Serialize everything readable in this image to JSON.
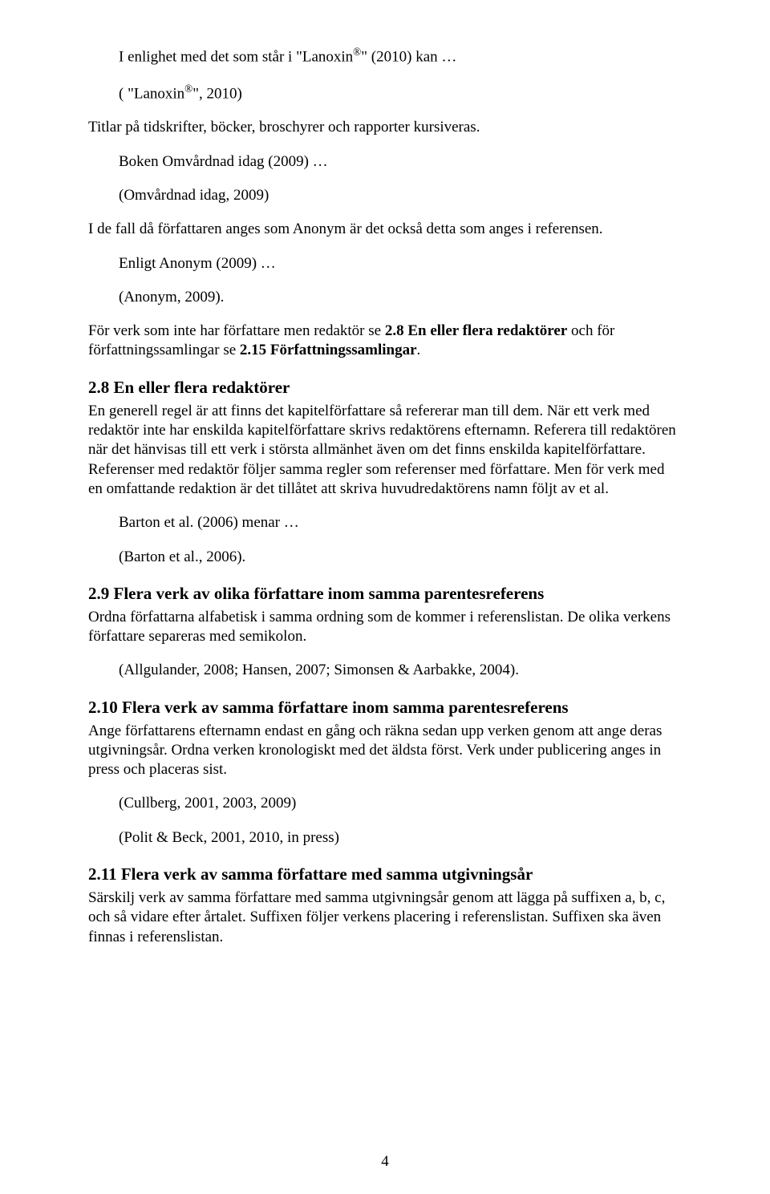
{
  "doc": {
    "line1_pre": "I enlighet med det som står i \"Lanoxin",
    "line1_sup": "®",
    "line1_post": "\" (2010) kan …",
    "line2_pre": "( \"Lanoxin",
    "line2_sup": "®",
    "line2_post": "\", 2010)",
    "p3": "Titlar på tidskrifter, böcker, broschyrer och rapporter kursiveras.",
    "p4": "Boken Omvårdnad idag (2009) …",
    "p5": "(Omvårdnad idag, 2009)",
    "p6": "I de fall då författaren anges som Anonym är det också detta som anges i referensen.",
    "p7": "Enligt Anonym (2009) …",
    "p8": "(Anonym, 2009).",
    "p9_a": "För verk som inte har författare men redaktör se ",
    "p9_b": "2.8 En eller flera redaktörer",
    "p9_c": " och för författningssamlingar se ",
    "p9_d": "2.15 Författningssamlingar",
    "p9_e": ".",
    "h28": "2.8 En eller flera redaktörer",
    "p28": "En generell regel är att finns det kapitelförfattare så refererar man till dem. När ett verk med redaktör inte har enskilda kapitelförfattare skrivs redaktörens efternamn. Referera till redaktören när det hänvisas till ett verk i största allmänhet även om det finns enskilda kapitelförfattare. Referenser med redaktör följer samma regler som referenser med författare. Men för verk med en omfattande redaktion är det tillåtet att skriva huvudredaktörens namn följt av et al.",
    "p28a": "Barton et al. (2006) menar …",
    "p28b": "(Barton et al., 2006).",
    "h29": "2.9 Flera verk av olika författare inom samma parentesreferens",
    "p29": "Ordna författarna alfabetisk i samma ordning som de kommer i referenslistan. De olika verkens författare separeras med semikolon.",
    "p29a": "(Allgulander, 2008; Hansen, 2007; Simonsen & Aarbakke, 2004).",
    "h210": "2.10 Flera verk av samma författare inom samma parentesreferens",
    "p210": "Ange författarens efternamn endast en gång och räkna sedan upp verken genom att ange deras utgivningsår. Ordna verken kronologiskt med det äldsta först. Verk under publicering anges in press och placeras sist.",
    "p210a": "(Cullberg, 2001, 2003, 2009)",
    "p210b": "(Polit & Beck, 2001, 2010, in press)",
    "h211": "2.11 Flera verk av samma författare med samma utgivningsår",
    "p211": "Särskilj verk av samma författare med samma utgivningsår genom att lägga på suffixen a, b, c, och så vidare efter årtalet. Suffixen följer verkens placering i referenslistan. Suffixen ska även finnas i referenslistan.",
    "pagenum": "4"
  }
}
